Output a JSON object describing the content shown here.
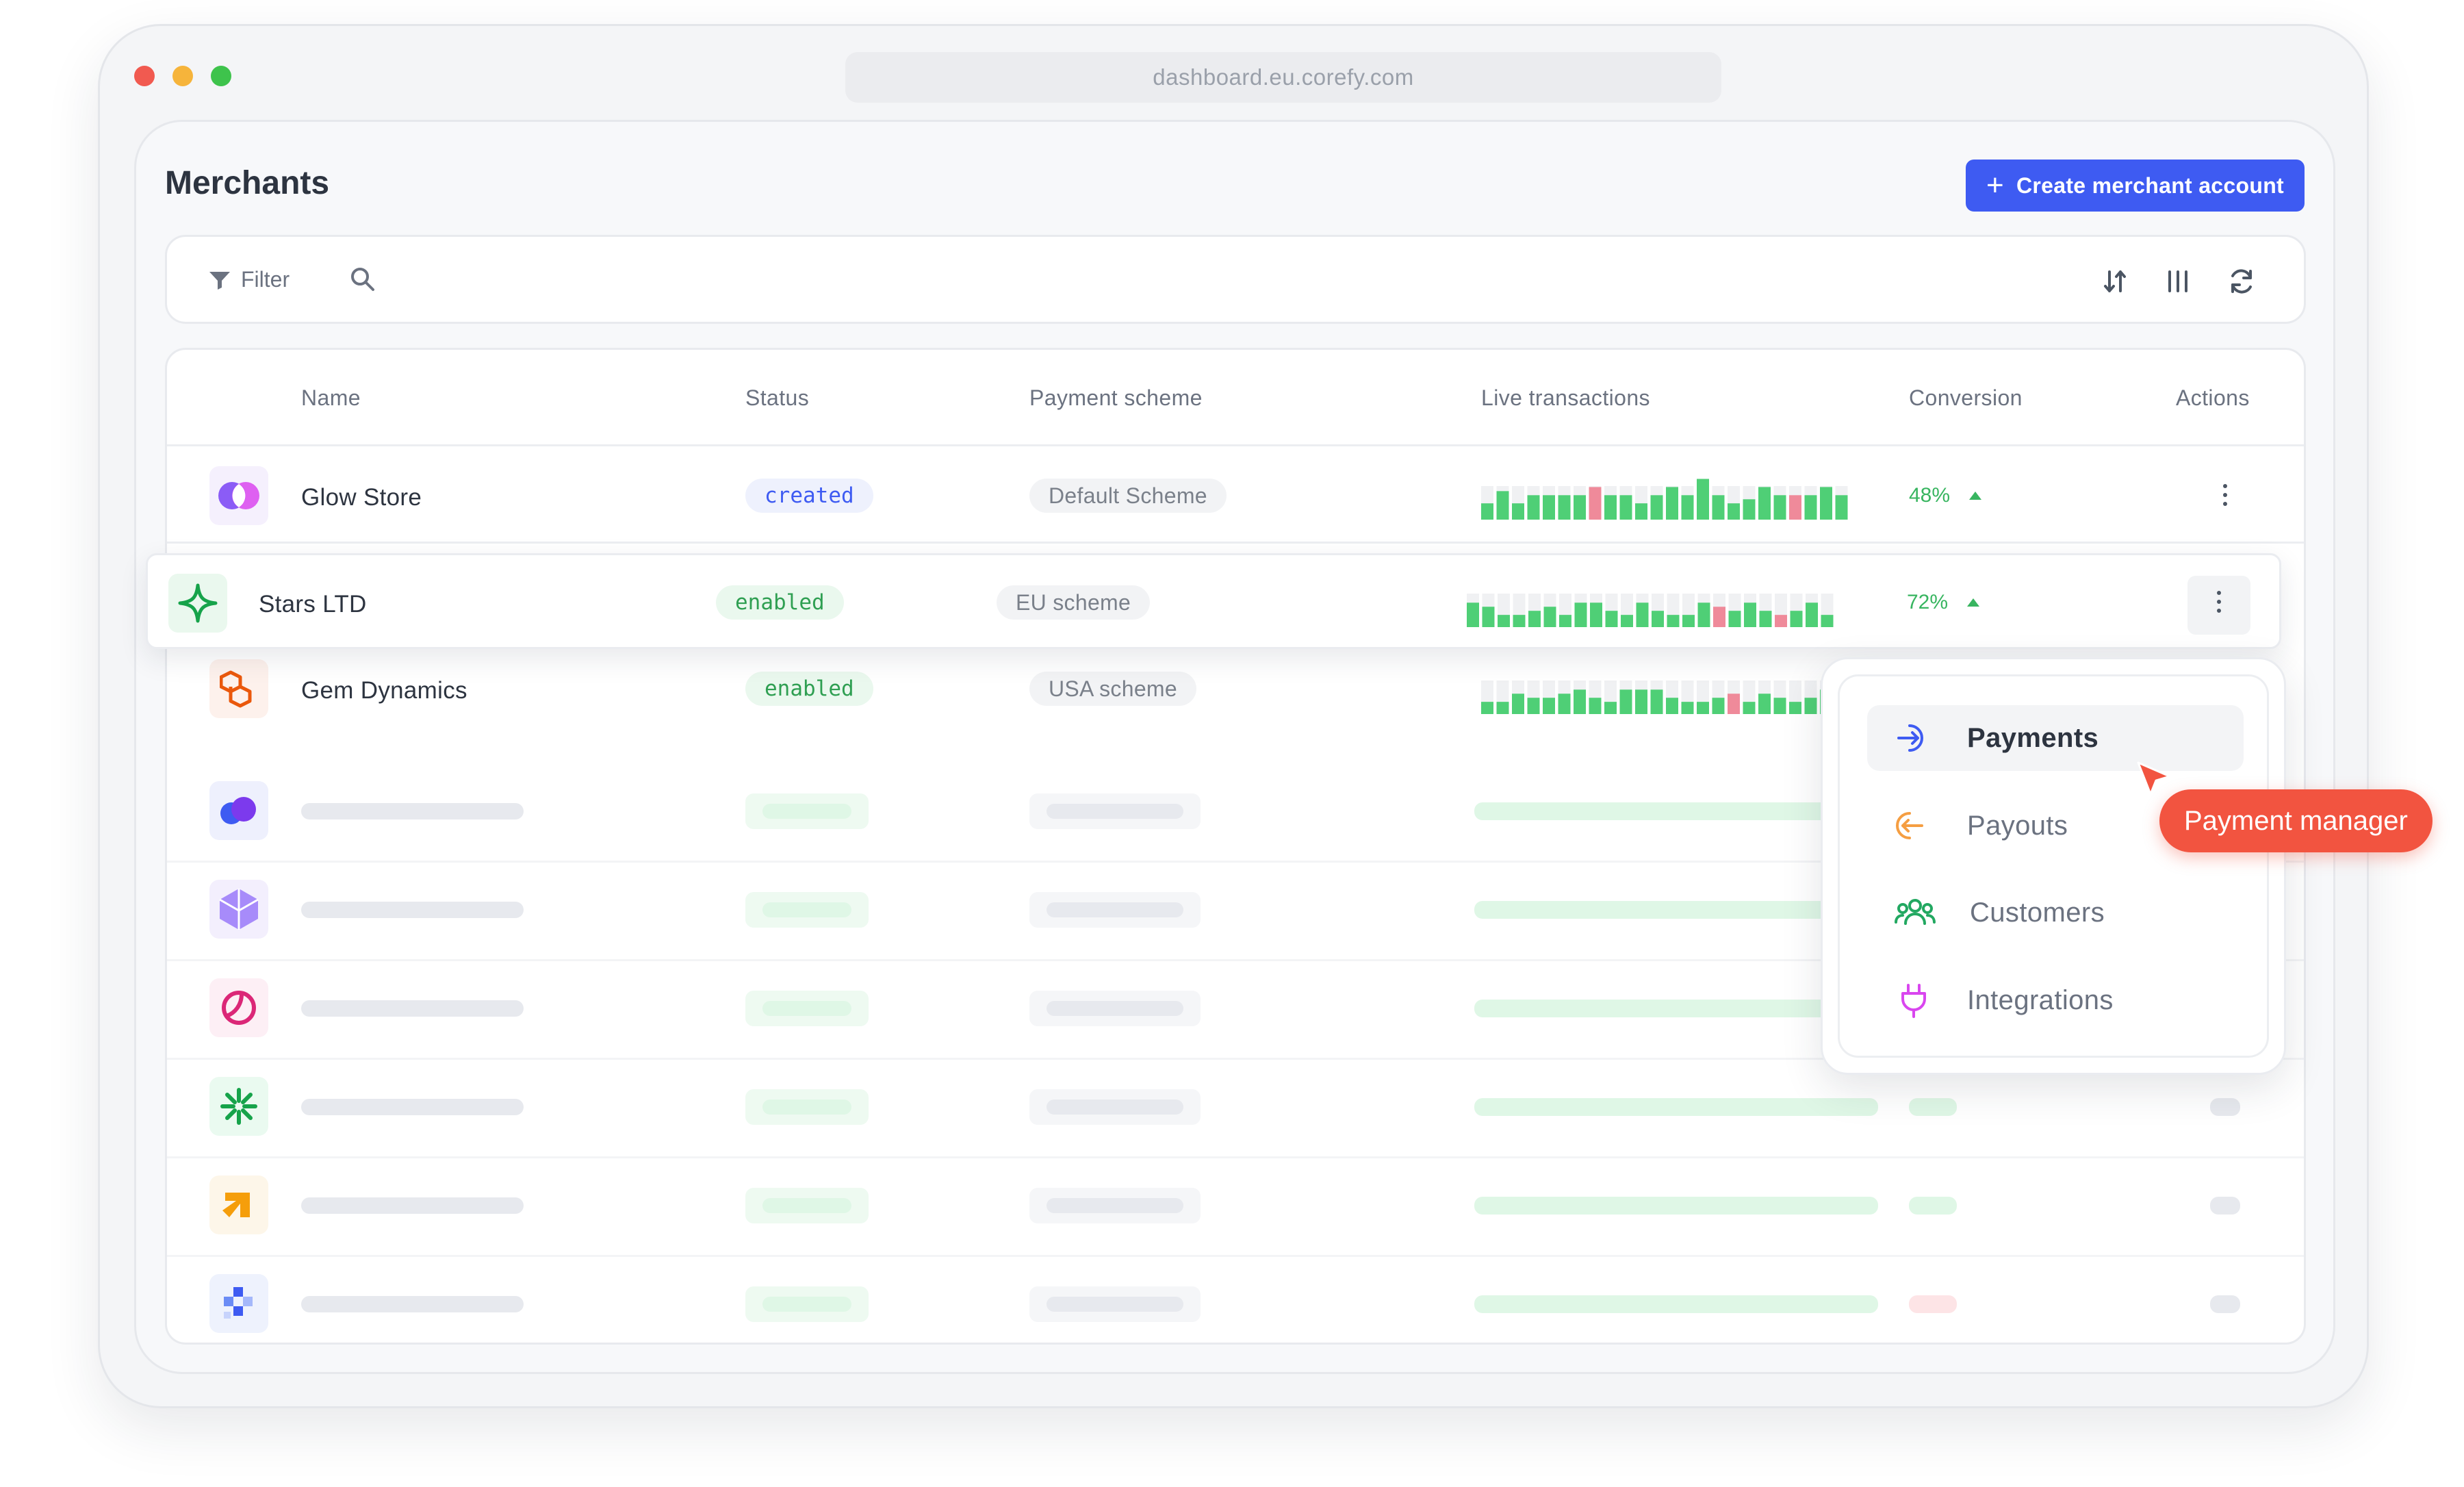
{
  "browser": {
    "url": "dashboard.eu.corefy.com"
  },
  "page": {
    "title": "Merchants",
    "create_button": "Create merchant account"
  },
  "toolbar": {
    "filter_label": "Filter",
    "icons": [
      "filter-icon",
      "search-icon",
      "sort-icon",
      "columns-icon",
      "refresh-icon"
    ]
  },
  "table": {
    "headers": {
      "name": "Name",
      "status": "Status",
      "scheme": "Payment scheme",
      "live": "Live transactions",
      "conversion": "Conversion",
      "actions": "Actions"
    },
    "rows": [
      {
        "name": "Glow Store",
        "status": "created",
        "scheme": "Default Scheme",
        "conversion": "48%",
        "trend": "up",
        "bars": [
          0.4,
          0.7,
          0.4,
          0.6,
          0.6,
          0.6,
          0.6,
          0.8,
          0.6,
          0.6,
          0.4,
          0.6,
          0.8,
          0.6,
          1.0,
          0.6,
          0.4,
          0.5,
          0.8,
          0.6,
          0.6,
          0.6,
          0.8,
          0.6
        ],
        "bars_red": [
          0,
          0,
          0,
          0,
          0,
          0,
          0,
          1,
          0,
          0,
          0,
          0,
          0,
          0,
          0,
          0,
          0,
          0,
          0,
          0,
          1,
          0,
          0,
          0
        ]
      },
      {
        "name": "Stars LTD",
        "status": "enabled",
        "scheme": "EU scheme",
        "conversion": "72%",
        "trend": "up",
        "bars": [
          0.6,
          0.5,
          0.3,
          0.3,
          0.4,
          0.5,
          0.3,
          0.6,
          0.6,
          0.4,
          0.3,
          0.6,
          0.4,
          0.3,
          0.3,
          0.6,
          0.5,
          0.4,
          0.6,
          0.4,
          0.3,
          0.4,
          0.6,
          0.3
        ],
        "bars_red": [
          0,
          0,
          0,
          0,
          0,
          0,
          0,
          0,
          0,
          0,
          0,
          0,
          0,
          0,
          0,
          0,
          1,
          0,
          0,
          0,
          1,
          0,
          0,
          0
        ]
      },
      {
        "name": "Gem Dynamics",
        "status": "enabled",
        "scheme": "USA scheme",
        "conversion": "",
        "trend": "",
        "bars": [
          0.3,
          0.3,
          0.5,
          0.4,
          0.4,
          0.5,
          0.6,
          0.4,
          0.3,
          0.6,
          0.6,
          0.6,
          0.4,
          0.3,
          0.3,
          0.4,
          0.5,
          0.3,
          0.5,
          0.4,
          0.3,
          0.4,
          0.6,
          0.3
        ],
        "bars_red": [
          0,
          0,
          0,
          0,
          0,
          0,
          0,
          0,
          0,
          0,
          0,
          0,
          0,
          0,
          0,
          0,
          1,
          0,
          0,
          0,
          0,
          0,
          0,
          0
        ]
      }
    ],
    "placeholder_rows": [
      {
        "logo": "purple-cloud-logo"
      },
      {
        "logo": "violet-gem-logo"
      },
      {
        "logo": "pink-ring-logo"
      },
      {
        "logo": "green-asterisk-logo"
      },
      {
        "logo": "orange-arrow-logo"
      },
      {
        "logo": "blue-pixel-logo"
      }
    ]
  },
  "actions_menu": {
    "items": [
      {
        "label": "Payments",
        "icon": "arrow-in-icon",
        "active": true
      },
      {
        "label": "Payouts",
        "icon": "arrow-out-icon",
        "active": false
      },
      {
        "label": "Customers",
        "icon": "users-icon",
        "active": false
      },
      {
        "label": "Integrations",
        "icon": "plug-icon",
        "active": false
      }
    ]
  },
  "tooltip": {
    "label": "Payment manager"
  },
  "colors": {
    "accent": "#3e5bf2",
    "enabled": "#2f9f52",
    "tooltip": "#f25440",
    "bar_green": "#4fcf76",
    "bar_grey": "#e3e5e9",
    "bar_red": "#ef8a9a"
  }
}
